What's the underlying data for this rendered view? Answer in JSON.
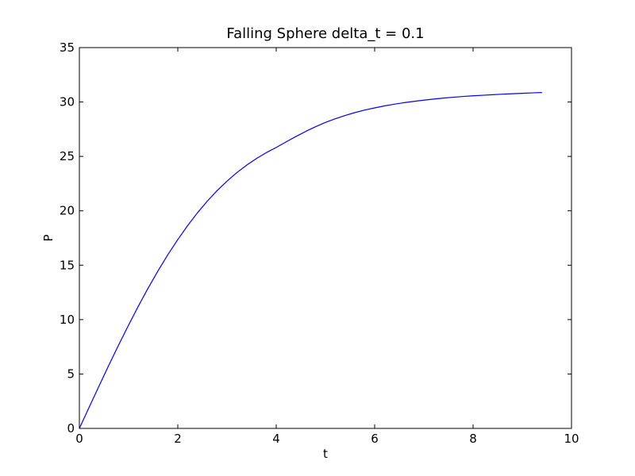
{
  "chart_data": {
    "type": "line",
    "title": "Falling Sphere delta_t = 0.1",
    "xlabel": "t",
    "ylabel": "P",
    "xlim": [
      0,
      10
    ],
    "ylim": [
      0,
      35
    ],
    "xticks": [
      "0",
      "2",
      "4",
      "6",
      "8",
      "10"
    ],
    "yticks": [
      "0",
      "5",
      "10",
      "15",
      "20",
      "25",
      "30",
      "35"
    ],
    "grid": false,
    "series": [
      {
        "color": "#0000ff",
        "x": [
          0.0,
          0.2,
          0.4,
          0.6,
          0.8,
          1.0,
          1.2,
          1.4,
          1.6,
          1.8,
          2.0,
          2.2,
          2.4,
          2.6,
          2.8,
          3.0,
          3.2,
          3.4,
          3.6,
          3.8,
          4.0,
          4.2,
          4.4,
          4.6,
          4.8,
          5.0,
          5.2,
          5.4,
          5.6,
          5.8,
          6.0,
          6.2,
          6.4,
          6.6,
          6.8,
          7.0,
          7.2,
          7.4,
          7.6,
          7.8,
          8.0,
          8.2,
          8.4,
          8.6,
          8.8,
          9.0,
          9.2,
          9.4
        ],
        "y": [
          0.0,
          1.96,
          3.9,
          5.82,
          7.69,
          9.5,
          11.25,
          12.92,
          14.5,
          15.98,
          17.36,
          18.64,
          19.82,
          20.89,
          21.86,
          22.73,
          23.51,
          24.2,
          24.81,
          25.35,
          25.82,
          26.33,
          26.83,
          27.3,
          27.73,
          28.12,
          28.46,
          28.76,
          29.03,
          29.26,
          29.46,
          29.64,
          29.8,
          29.94,
          30.06,
          30.17,
          30.27,
          30.36,
          30.44,
          30.51,
          30.57,
          30.62,
          30.67,
          30.72,
          30.76,
          30.8,
          30.84,
          30.87
        ]
      }
    ]
  }
}
